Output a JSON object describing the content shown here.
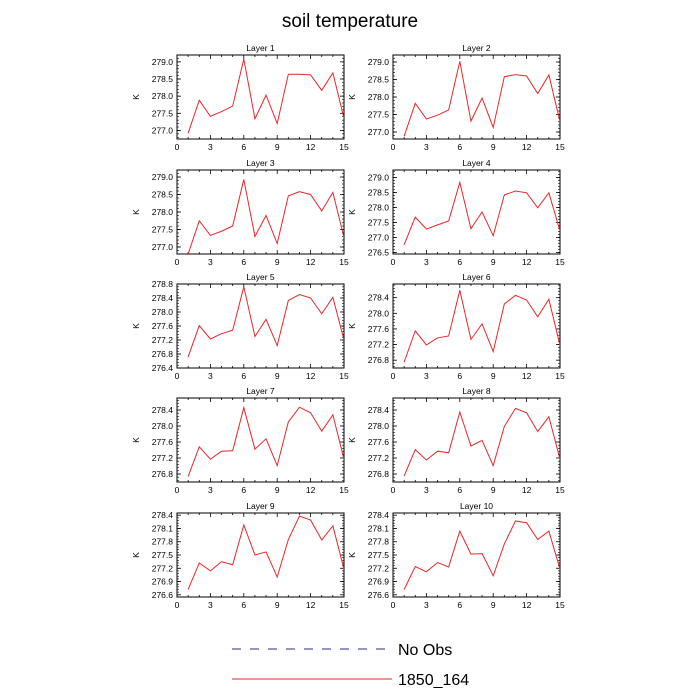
{
  "figure": {
    "title": "soil temperature"
  },
  "legend": {
    "entries": [
      {
        "label": "No Obs",
        "style": "dashed",
        "color": "#2b2b8a"
      },
      {
        "label": "1850_164",
        "style": "solid",
        "color": "#e8262a"
      }
    ]
  },
  "chart_data": [
    {
      "type": "line",
      "title": "Layer 1",
      "ylabel": "K",
      "x": [
        1,
        2,
        3,
        4,
        5,
        6,
        7,
        8,
        9,
        10,
        11,
        12,
        13,
        14,
        15
      ],
      "xlim": [
        0,
        15
      ],
      "xticks": [
        0,
        3,
        6,
        9,
        12,
        15
      ],
      "ylim": [
        276.75,
        279.2
      ],
      "yticks": [
        "277.0",
        "277.5",
        "278.0",
        "278.5",
        "279.0"
      ],
      "series": [
        {
          "values": [
            276.92,
            277.88,
            277.41,
            277.55,
            277.71,
            279.08,
            277.34,
            278.03,
            277.2,
            278.64,
            278.64,
            278.62,
            278.17,
            278.68,
            277.35
          ],
          "color": "#e8262a"
        }
      ]
    },
    {
      "type": "line",
      "title": "Layer 2",
      "ylabel": "K",
      "x": [
        1,
        2,
        3,
        4,
        5,
        6,
        7,
        8,
        9,
        10,
        11,
        12,
        13,
        14,
        15
      ],
      "xlim": [
        0,
        15
      ],
      "xticks": [
        0,
        3,
        6,
        9,
        12,
        15
      ],
      "ylim": [
        276.8,
        279.2
      ],
      "yticks": [
        "277.0",
        "277.5",
        "278.0",
        "278.5",
        "279.0"
      ],
      "series": [
        {
          "values": [
            276.88,
            277.82,
            277.37,
            277.48,
            277.63,
            279.02,
            277.31,
            277.97,
            277.13,
            278.58,
            278.64,
            278.6,
            278.1,
            278.63,
            277.3
          ],
          "color": "#e8262a"
        }
      ]
    },
    {
      "type": "line",
      "title": "Layer 3",
      "ylabel": "K",
      "x": [
        1,
        2,
        3,
        4,
        5,
        6,
        7,
        8,
        9,
        10,
        11,
        12,
        13,
        14,
        15
      ],
      "xlim": [
        0,
        15
      ],
      "xticks": [
        0,
        3,
        6,
        9,
        12,
        15
      ],
      "ylim": [
        276.8,
        279.2
      ],
      "yticks": [
        "277.0",
        "277.5",
        "278.0",
        "278.5",
        "279.0"
      ],
      "series": [
        {
          "values": [
            276.8,
            277.75,
            277.33,
            277.45,
            277.6,
            278.93,
            277.3,
            277.9,
            277.1,
            278.46,
            278.58,
            278.5,
            278.03,
            278.56,
            277.27
          ],
          "color": "#e8262a"
        }
      ]
    },
    {
      "type": "line",
      "title": "Layer 4",
      "ylabel": "K",
      "x": [
        1,
        2,
        3,
        4,
        5,
        6,
        7,
        8,
        9,
        10,
        11,
        12,
        13,
        14,
        15
      ],
      "xlim": [
        0,
        15
      ],
      "xticks": [
        0,
        3,
        6,
        9,
        12,
        15
      ],
      "ylim": [
        276.45,
        279.25
      ],
      "yticks": [
        "276.5",
        "277.0",
        "277.5",
        "278.0",
        "278.5",
        "279.0"
      ],
      "series": [
        {
          "values": [
            276.76,
            277.68,
            277.28,
            277.42,
            277.55,
            278.84,
            277.29,
            277.85,
            277.06,
            278.42,
            278.55,
            278.49,
            277.99,
            278.49,
            277.22
          ],
          "color": "#e8262a"
        }
      ]
    },
    {
      "type": "line",
      "title": "Layer 5",
      "ylabel": "K",
      "x": [
        1,
        2,
        3,
        4,
        5,
        6,
        7,
        8,
        9,
        10,
        11,
        12,
        13,
        14,
        15
      ],
      "xlim": [
        0,
        15
      ],
      "xticks": [
        0,
        3,
        6,
        9,
        12,
        15
      ],
      "ylim": [
        276.4,
        278.8
      ],
      "yticks": [
        "276.4",
        "276.8",
        "277.2",
        "277.6",
        "278.0",
        "278.4",
        "278.8"
      ],
      "series": [
        {
          "values": [
            276.72,
            277.61,
            277.23,
            277.38,
            277.48,
            278.72,
            277.3,
            277.79,
            277.04,
            278.33,
            278.5,
            278.4,
            277.95,
            278.42,
            277.2
          ],
          "color": "#e8262a"
        }
      ]
    },
    {
      "type": "line",
      "title": "Layer 6",
      "ylabel": "K",
      "x": [
        1,
        2,
        3,
        4,
        5,
        6,
        7,
        8,
        9,
        10,
        11,
        12,
        13,
        14,
        15
      ],
      "xlim": [
        0,
        15
      ],
      "xticks": [
        0,
        3,
        6,
        9,
        12,
        15
      ],
      "ylim": [
        276.6,
        278.75
      ],
      "yticks": [
        "276.8",
        "277.2",
        "277.6",
        "278.0",
        "278.4"
      ],
      "series": [
        {
          "values": [
            276.75,
            277.55,
            277.19,
            277.37,
            277.42,
            278.59,
            277.33,
            277.73,
            277.02,
            278.24,
            278.46,
            278.34,
            277.91,
            278.36,
            277.18
          ],
          "color": "#e8262a"
        }
      ]
    },
    {
      "type": "line",
      "title": "Layer 7",
      "ylabel": "K",
      "x": [
        1,
        2,
        3,
        4,
        5,
        6,
        7,
        8,
        9,
        10,
        11,
        12,
        13,
        14,
        15
      ],
      "xlim": [
        0,
        15
      ],
      "xticks": [
        0,
        3,
        6,
        9,
        12,
        15
      ],
      "ylim": [
        276.6,
        278.7
      ],
      "yticks": [
        "276.8",
        "277.2",
        "277.6",
        "278.0",
        "278.4"
      ],
      "series": [
        {
          "values": [
            276.74,
            277.48,
            277.17,
            277.37,
            277.38,
            278.46,
            277.42,
            277.68,
            277.01,
            278.1,
            278.47,
            278.33,
            277.87,
            278.28,
            277.17
          ],
          "color": "#e8262a"
        }
      ]
    },
    {
      "type": "line",
      "title": "Layer 8",
      "ylabel": "K",
      "x": [
        1,
        2,
        3,
        4,
        5,
        6,
        7,
        8,
        9,
        10,
        11,
        12,
        13,
        14,
        15
      ],
      "xlim": [
        0,
        15
      ],
      "xticks": [
        0,
        3,
        6,
        9,
        12,
        15
      ],
      "ylim": [
        276.6,
        278.7
      ],
      "yticks": [
        "276.8",
        "277.2",
        "277.6",
        "278.0",
        "278.4"
      ],
      "series": [
        {
          "values": [
            276.75,
            277.41,
            277.15,
            277.37,
            277.33,
            278.35,
            277.5,
            277.64,
            277.01,
            277.99,
            278.44,
            278.33,
            277.86,
            278.23,
            277.17
          ],
          "color": "#e8262a"
        }
      ]
    },
    {
      "type": "line",
      "title": "Layer 9",
      "ylabel": "K",
      "x": [
        1,
        2,
        3,
        4,
        5,
        6,
        7,
        8,
        9,
        10,
        11,
        12,
        13,
        14,
        15
      ],
      "xlim": [
        0,
        15
      ],
      "xticks": [
        0,
        3,
        6,
        9,
        12,
        15
      ],
      "ylim": [
        276.55,
        278.45
      ],
      "yticks": [
        "276.6",
        "276.9",
        "277.2",
        "277.5",
        "277.8",
        "278.1",
        "278.4"
      ],
      "series": [
        {
          "values": [
            276.72,
            277.32,
            277.14,
            277.35,
            277.28,
            278.18,
            277.5,
            277.57,
            277.0,
            277.85,
            278.38,
            278.29,
            277.84,
            278.16,
            277.18
          ],
          "color": "#e8262a"
        }
      ]
    },
    {
      "type": "line",
      "title": "Layer 10",
      "ylabel": "K",
      "x": [
        1,
        2,
        3,
        4,
        5,
        6,
        7,
        8,
        9,
        10,
        11,
        12,
        13,
        14,
        15
      ],
      "xlim": [
        0,
        15
      ],
      "xticks": [
        0,
        3,
        6,
        9,
        12,
        15
      ],
      "ylim": [
        276.55,
        278.45
      ],
      "yticks": [
        "276.6",
        "276.9",
        "277.2",
        "277.5",
        "277.8",
        "278.1",
        "278.4"
      ],
      "series": [
        {
          "values": [
            276.72,
            277.24,
            277.12,
            277.33,
            277.23,
            278.04,
            277.52,
            277.53,
            277.03,
            277.75,
            278.27,
            278.23,
            277.85,
            278.04,
            277.18
          ],
          "color": "#e8262a"
        }
      ]
    }
  ]
}
